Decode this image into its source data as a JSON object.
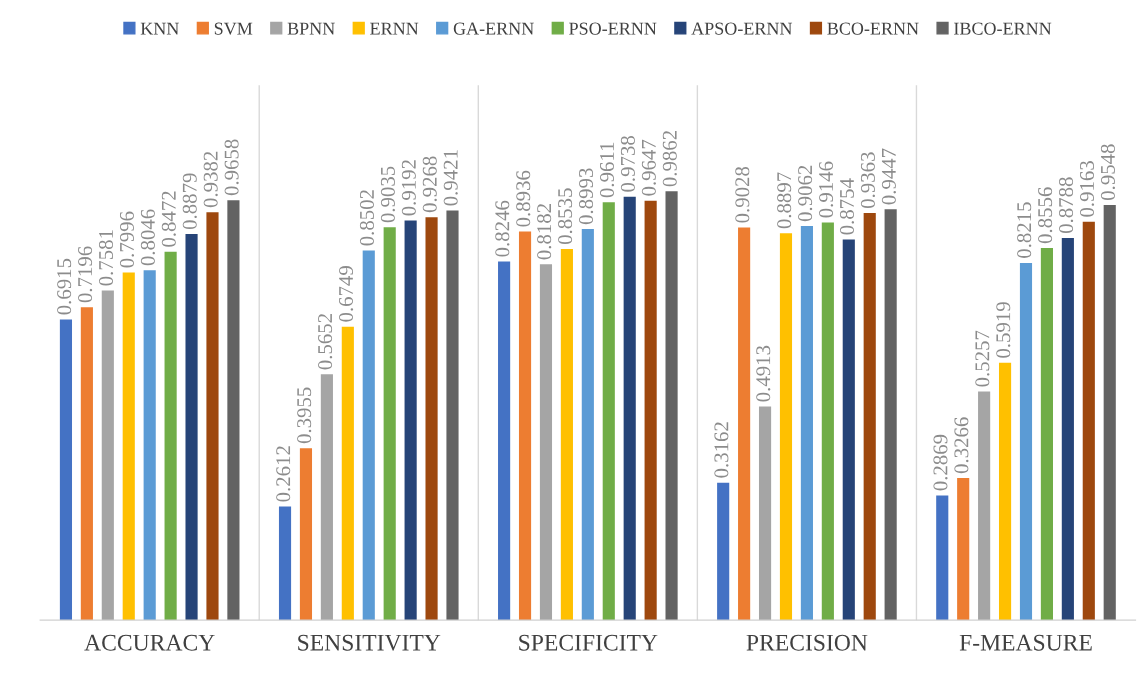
{
  "chart_data": {
    "type": "bar",
    "categories": [
      "ACCURACY",
      "SENSITIVITY",
      "SPECIFICITY",
      "PRECISION",
      "F-MEASURE"
    ],
    "series": [
      {
        "name": "KNN",
        "color": "#4472c4",
        "values": [
          0.6915,
          0.2612,
          0.8246,
          0.3162,
          0.2869
        ]
      },
      {
        "name": "SVM",
        "color": "#ed7d31",
        "values": [
          0.7196,
          0.3955,
          0.8936,
          0.9028,
          0.3266
        ]
      },
      {
        "name": "BPNN",
        "color": "#a5a5a5",
        "values": [
          0.7581,
          0.5652,
          0.8182,
          0.4913,
          0.5257
        ]
      },
      {
        "name": "ERNN",
        "color": "#ffc000",
        "values": [
          0.7996,
          0.6749,
          0.8535,
          0.8897,
          0.5919
        ]
      },
      {
        "name": "GA-ERNN",
        "color": "#5b9bd5",
        "values": [
          0.8046,
          0.8502,
          0.8993,
          0.9062,
          0.8215
        ]
      },
      {
        "name": "PSO-ERNN",
        "color": "#70ad47",
        "values": [
          0.8472,
          0.9035,
          0.9611,
          0.9146,
          0.8556
        ]
      },
      {
        "name": "APSO-ERNN",
        "color": "#264478",
        "values": [
          0.8879,
          0.9192,
          0.9738,
          0.8754,
          0.8788
        ]
      },
      {
        "name": "BCO-ERNN",
        "color": "#9e480e",
        "values": [
          0.9382,
          0.9268,
          0.9647,
          0.9363,
          0.9163
        ]
      },
      {
        "name": "IBCO-ERNN",
        "color": "#636363",
        "values": [
          0.9658,
          0.9421,
          0.9862,
          0.9447,
          0.9548
        ]
      }
    ],
    "ylim": [
      0,
      1.23
    ],
    "tick_labels": "x",
    "data_labels": true,
    "grid": "x",
    "legend": "top"
  }
}
